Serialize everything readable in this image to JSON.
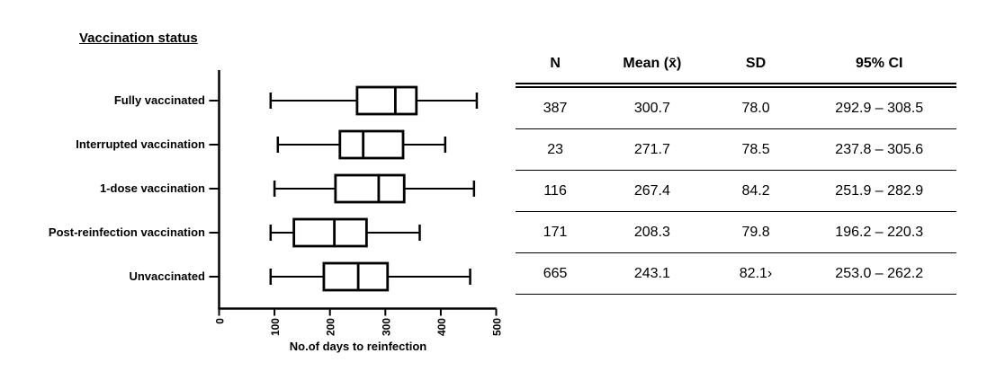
{
  "figure": {
    "title": "Vaccination status",
    "xlabel": "No.of days to reinfection"
  },
  "chart_data": {
    "type": "box",
    "orientation": "horizontal",
    "title": "Vaccination status",
    "xlabel": "No.of days to reinfection",
    "xlim": [
      0,
      500
    ],
    "xticks": [
      0,
      100,
      200,
      300,
      400,
      500
    ],
    "grid": false,
    "categories": [
      "Fully vaccinated",
      "Interrupted vaccination",
      "1-dose vaccination",
      "Post-reinfection vaccination",
      "Unvaccinated"
    ],
    "series": [
      {
        "name": "Fully vaccinated",
        "min": 93,
        "q1": 249,
        "median": 318,
        "q3": 356,
        "max": 465
      },
      {
        "name": "Interrupted vaccination",
        "min": 106,
        "q1": 218,
        "median": 260,
        "q3": 332,
        "max": 408
      },
      {
        "name": "1-dose vaccination",
        "min": 100,
        "q1": 210,
        "median": 288,
        "q3": 334,
        "max": 460
      },
      {
        "name": "Post-reinfection vaccination",
        "min": 93,
        "q1": 135,
        "median": 208,
        "q3": 266,
        "max": 362
      },
      {
        "name": "Unvaccinated",
        "min": 93,
        "q1": 189,
        "median": 251,
        "q3": 304,
        "max": 453
      }
    ]
  },
  "table": {
    "headers": [
      "N",
      "Mean (x̄)",
      "SD",
      "95% CI"
    ],
    "rows": [
      [
        "387",
        "300.7",
        "78.0",
        "292.9 – 308.5"
      ],
      [
        "23",
        "271.7",
        "78.5",
        "237.8 – 305.6"
      ],
      [
        "116",
        "267.4",
        "84.2",
        "251.9 – 282.9"
      ],
      [
        "171",
        "208.3",
        "79.8",
        "196.2 – 220.3"
      ],
      [
        "665",
        "243.1",
        "82.1›",
        "253.0 – 262.2"
      ]
    ]
  },
  "colors": {
    "ink": "#000000",
    "background": "#ffffff"
  }
}
